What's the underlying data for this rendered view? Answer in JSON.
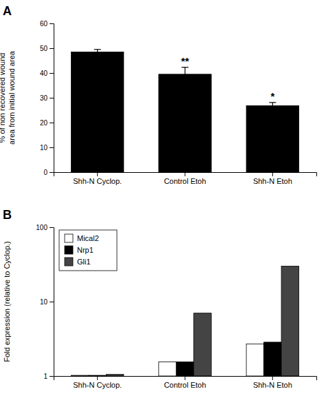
{
  "chart_data": [
    {
      "type": "bar",
      "title": "A",
      "categories": [
        "Shh-N Cyclop.",
        "Control Etoh",
        "Shh-N Etoh"
      ],
      "values": [
        48.5,
        39.5,
        26.8
      ],
      "errors": [
        1.0,
        2.8,
        1.3
      ],
      "color": "#000000",
      "ylabel": "% of non recovered wound\narea from initial wound area",
      "ylim": [
        0,
        60
      ],
      "yticks": [
        0,
        10,
        20,
        30,
        40,
        50,
        60
      ],
      "annotations": [
        {
          "text": "**",
          "category": "Control Etoh"
        },
        {
          "text": "*",
          "category": "Shh-N Etoh"
        }
      ],
      "grid": false
    },
    {
      "type": "bar",
      "title": "B",
      "categories": [
        "Shh-N Cyclop.",
        "Control Etoh",
        "Shh-N Etoh"
      ],
      "series": [
        {
          "name": "Mical2",
          "color": "#ffffff",
          "values": [
            1.02,
            1.55,
            2.7
          ]
        },
        {
          "name": "Nrp1",
          "color": "#000000",
          "values": [
            1.02,
            1.55,
            2.85
          ]
        },
        {
          "name": "Gli1",
          "color": "#444444",
          "values": [
            1.05,
            7.0,
            30.0
          ]
        }
      ],
      "ylabel": "Fold expression (relative to Cyclop.)",
      "ylim": [
        1,
        100
      ],
      "yticks": [
        1,
        10,
        100
      ],
      "log": "y",
      "legend": "upper-left",
      "grid": false
    }
  ]
}
